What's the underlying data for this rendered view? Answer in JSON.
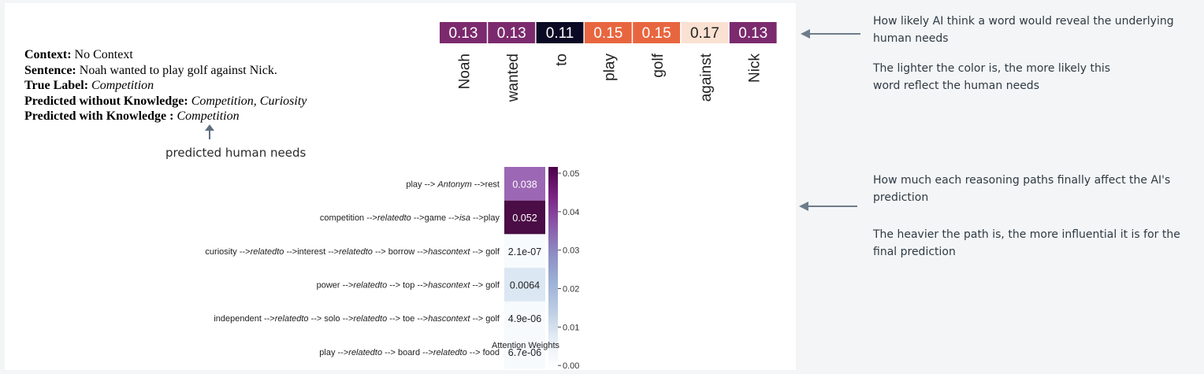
{
  "example": {
    "context_label": "Context:",
    "context_value": "No Context",
    "sentence_label": "Sentence:",
    "sentence_value": "Noah wanted to play golf against Nick.",
    "true_label_label": "True Label:",
    "true_label_value": "Competition",
    "pred_without_label": "Predicted without Knowledge:",
    "pred_without_value": "Competition, Curiosity",
    "pred_with_label": "Predicted with Knowledge :",
    "pred_with_value": "Competition"
  },
  "captions": {
    "predicted_needs": "predicted human needs"
  },
  "notes": {
    "top_1": "How likely AI think a word would reveal the underlying human needs",
    "top_2": "The lighter the color is, the more likely this word reflect the human needs",
    "bottom_1": "How much each reasoning paths finally affect the AI's prediction",
    "bottom_2": "The heavier the path is, the more influential it is for the final prediction"
  },
  "chart_data": [
    {
      "type": "heatmap",
      "categories": [
        "Noah",
        "wanted",
        "to",
        "play",
        "golf",
        "against",
        "Nick"
      ],
      "values": [
        0.13,
        0.13,
        0.11,
        0.15,
        0.15,
        0.17,
        0.13
      ],
      "labels": [
        "0.13",
        "0.13",
        "0.11",
        "0.15",
        "0.15",
        "0.17",
        "0.13"
      ],
      "colors": [
        "#7b2a6e",
        "#7b2a6e",
        "#0b0a24",
        "#e8663f",
        "#e8663f",
        "#fbe1d2",
        "#7b2a6e"
      ],
      "text_colors": [
        "#ffffff",
        "#ffffff",
        "#ffffff",
        "#ffffff",
        "#ffffff",
        "#222222",
        "#ffffff"
      ]
    },
    {
      "type": "heatmap",
      "xlabel": "Attention Weights",
      "rows": [
        {
          "parts": [
            [
              "play --> ",
              false
            ],
            [
              "Antonym",
              true
            ],
            [
              " -->rest",
              false
            ]
          ],
          "value": 0.038,
          "label": "0.038",
          "color": "#9c67b4",
          "text_color": "#ffffff"
        },
        {
          "parts": [
            [
              "competition -->",
              false
            ],
            [
              "relatedto",
              true
            ],
            [
              " -->game -->",
              false
            ],
            [
              "isa",
              true
            ],
            [
              " -->play",
              false
            ]
          ],
          "value": 0.052,
          "label": "0.052",
          "color": "#4a0d45",
          "text_color": "#ffffff"
        },
        {
          "parts": [
            [
              "curiosity -->",
              false
            ],
            [
              "relatedto",
              true
            ],
            [
              " -->interest -->",
              false
            ],
            [
              "relatedto",
              true
            ],
            [
              " --> borrow -->",
              false
            ],
            [
              "hascontext",
              true
            ],
            [
              " --> golf",
              false
            ]
          ],
          "value": 2.1e-07,
          "label": "2.1e-07",
          "color": "#f7fbfd",
          "text_color": "#222222"
        },
        {
          "parts": [
            [
              "power -->",
              false
            ],
            [
              "relatedto",
              true
            ],
            [
              " --> top -->",
              false
            ],
            [
              "hascontext",
              true
            ],
            [
              " --> golf",
              false
            ]
          ],
          "value": 0.0064,
          "label": "0.0064",
          "color": "#dbe7f2",
          "text_color": "#222222"
        },
        {
          "parts": [
            [
              "independent -->",
              false
            ],
            [
              "relatedto",
              true
            ],
            [
              " --> solo -->",
              false
            ],
            [
              "relatedto",
              true
            ],
            [
              " --> toe -->",
              false
            ],
            [
              "hascontext",
              true
            ],
            [
              " --> golf",
              false
            ]
          ],
          "value": 4.9e-06,
          "label": "4.9e-06",
          "color": "#f6fafd",
          "text_color": "#222222"
        },
        {
          "parts": [
            [
              "play -->",
              false
            ],
            [
              "relatedto",
              true
            ],
            [
              " --> board -->",
              false
            ],
            [
              "relatedto",
              true
            ],
            [
              " --> food",
              false
            ]
          ],
          "value": 6.7e-06,
          "label": "6.7e-06",
          "color": "#f6fafd",
          "text_color": "#222222"
        }
      ],
      "colorbar": {
        "min": 0.0,
        "max": 0.05,
        "ticks": [
          0.05,
          0.04,
          0.03,
          0.02,
          0.01,
          0.0
        ],
        "tick_labels": [
          "0.05",
          "0.04",
          "0.03",
          "0.02",
          "0.01",
          "0.00"
        ],
        "gradient": [
          "#ffffff",
          "#e6eef6",
          "#bccde4",
          "#9db1d6",
          "#8c8dc3",
          "#8a57a8",
          "#7a2382",
          "#4b0049"
        ]
      }
    }
  ]
}
